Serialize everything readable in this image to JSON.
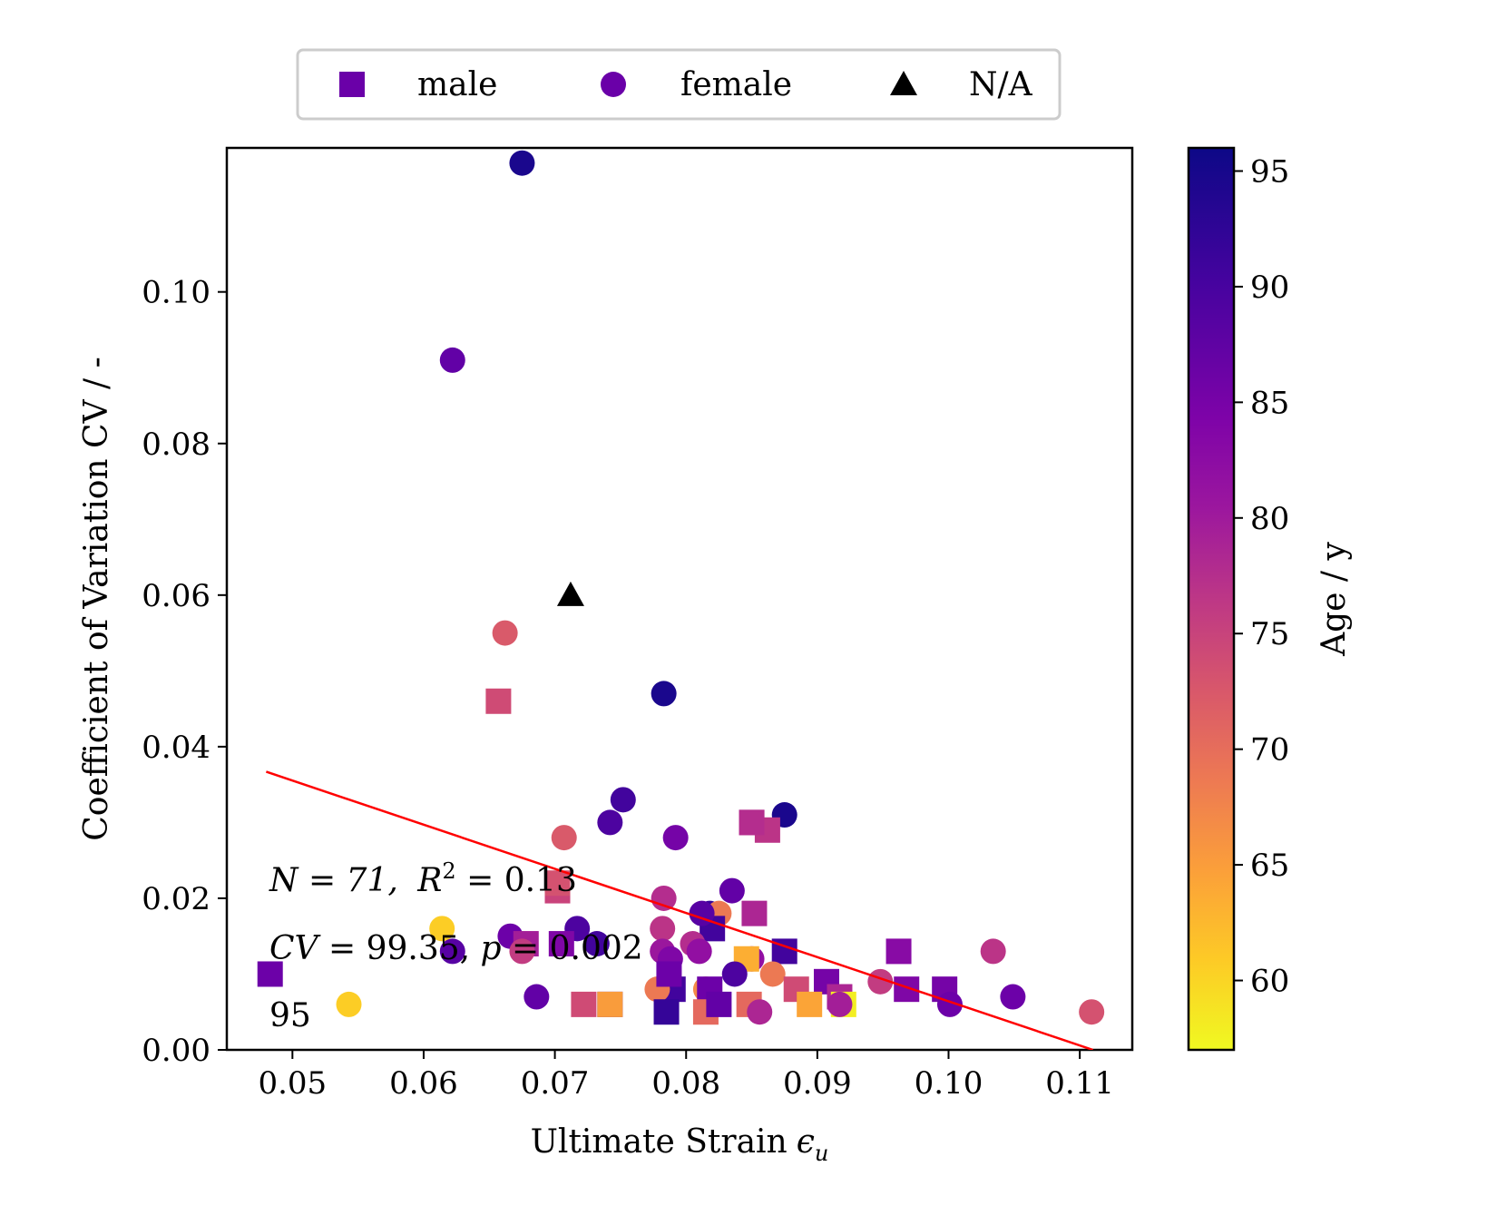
{
  "chart_data": {
    "type": "scatter",
    "xlabel": "Ultimate Strain",
    "xlabel_symbol": "ϵ",
    "xlabel_sub": "u",
    "ylabel": "Coefficient of Variation CV / -",
    "xlim": [
      0.045,
      0.114
    ],
    "ylim": [
      0.0,
      0.119
    ],
    "x_ticks": [
      0.05,
      0.06,
      0.07,
      0.08,
      0.09,
      0.1,
      0.11
    ],
    "x_tick_labels": [
      "0.05",
      "0.06",
      "0.07",
      "0.08",
      "0.09",
      "0.10",
      "0.11"
    ],
    "y_ticks": [
      0.0,
      0.02,
      0.04,
      0.06,
      0.08,
      0.1
    ],
    "y_tick_labels": [
      "0.00",
      "0.02",
      "0.04",
      "0.06",
      "0.08",
      "0.10"
    ],
    "grid": false,
    "legend": {
      "placement": "top-center, outside",
      "entries": [
        {
          "label": "male",
          "marker": "square",
          "color": "#6a00a8"
        },
        {
          "label": "female",
          "marker": "circle",
          "color": "#6a00a8"
        },
        {
          "label": "N/A",
          "marker": "triangle",
          "color": "#000000"
        }
      ]
    },
    "colorbar": {
      "label": "Age / y",
      "colormap": "plasma",
      "range": [
        57,
        96
      ],
      "ticks": [
        60,
        65,
        70,
        75,
        80,
        85,
        90,
        95
      ],
      "tick_labels": [
        "60",
        "65",
        "70",
        "75",
        "80",
        "85",
        "90",
        "95"
      ]
    },
    "fit_line": {
      "color": "#ff0000",
      "x": [
        0.048,
        0.111
      ],
      "y": [
        0.0367,
        0.0
      ]
    },
    "annotations": {
      "line1_n": "N = 71,",
      "line1_r2": "R",
      "line1_r2_sup": "2",
      "line1_r2_val": " = 0.13",
      "line2_cv": "CV",
      "line2_cv_val": " = 99.35, ",
      "line2_p": "p",
      "line2_p_val": " = 0.002",
      "line3": "95"
    },
    "points": [
      {
        "x": 0.0675,
        "y": 0.117,
        "age": 95,
        "sex": "female"
      },
      {
        "x": 0.0622,
        "y": 0.091,
        "age": 89,
        "sex": "female"
      },
      {
        "x": 0.0712,
        "y": 0.06,
        "age": null,
        "sex": "N/A"
      },
      {
        "x": 0.0662,
        "y": 0.055,
        "age": 74,
        "sex": "female"
      },
      {
        "x": 0.0657,
        "y": 0.046,
        "age": 76,
        "sex": "male"
      },
      {
        "x": 0.0783,
        "y": 0.047,
        "age": 95,
        "sex": "female"
      },
      {
        "x": 0.0752,
        "y": 0.033,
        "age": 92,
        "sex": "female"
      },
      {
        "x": 0.0742,
        "y": 0.03,
        "age": 91,
        "sex": "female"
      },
      {
        "x": 0.0792,
        "y": 0.028,
        "age": 87,
        "sex": "female"
      },
      {
        "x": 0.0875,
        "y": 0.031,
        "age": 95,
        "sex": "female"
      },
      {
        "x": 0.085,
        "y": 0.03,
        "age": 80,
        "sex": "male"
      },
      {
        "x": 0.0862,
        "y": 0.029,
        "age": 79,
        "sex": "male"
      },
      {
        "x": 0.0707,
        "y": 0.028,
        "age": 74,
        "sex": "female"
      },
      {
        "x": 0.0702,
        "y": 0.021,
        "age": 77,
        "sex": "male"
      },
      {
        "x": 0.0783,
        "y": 0.02,
        "age": 80,
        "sex": "female"
      },
      {
        "x": 0.0835,
        "y": 0.021,
        "age": 89,
        "sex": "female"
      },
      {
        "x": 0.0818,
        "y": 0.018,
        "age": 93,
        "sex": "female"
      },
      {
        "x": 0.0825,
        "y": 0.018,
        "age": 70,
        "sex": "female"
      },
      {
        "x": 0.0852,
        "y": 0.018,
        "age": 81,
        "sex": "male"
      },
      {
        "x": 0.0782,
        "y": 0.016,
        "age": 79,
        "sex": "female"
      },
      {
        "x": 0.082,
        "y": 0.016,
        "age": 92,
        "sex": "male"
      },
      {
        "x": 0.0614,
        "y": 0.016,
        "age": 61,
        "sex": "female"
      },
      {
        "x": 0.0666,
        "y": 0.015,
        "age": 88,
        "sex": "female"
      },
      {
        "x": 0.0717,
        "y": 0.016,
        "age": 91,
        "sex": "female"
      },
      {
        "x": 0.0732,
        "y": 0.014,
        "age": 92,
        "sex": "female"
      },
      {
        "x": 0.0678,
        "y": 0.014,
        "age": 82,
        "sex": "male"
      },
      {
        "x": 0.0705,
        "y": 0.014,
        "age": 86,
        "sex": "male"
      },
      {
        "x": 0.0622,
        "y": 0.013,
        "age": 90,
        "sex": "female"
      },
      {
        "x": 0.0782,
        "y": 0.013,
        "age": 83,
        "sex": "female"
      },
      {
        "x": 0.0805,
        "y": 0.014,
        "age": 80,
        "sex": "female"
      },
      {
        "x": 0.081,
        "y": 0.013,
        "age": 84,
        "sex": "female"
      },
      {
        "x": 0.0788,
        "y": 0.012,
        "age": 86,
        "sex": "female"
      },
      {
        "x": 0.085,
        "y": 0.012,
        "age": 84,
        "sex": "female"
      },
      {
        "x": 0.0846,
        "y": 0.012,
        "age": 64,
        "sex": "male"
      },
      {
        "x": 0.0875,
        "y": 0.013,
        "age": 92,
        "sex": "male"
      },
      {
        "x": 0.0962,
        "y": 0.013,
        "age": 85,
        "sex": "male"
      },
      {
        "x": 0.1034,
        "y": 0.013,
        "age": 79,
        "sex": "female"
      },
      {
        "x": 0.0483,
        "y": 0.01,
        "age": 88,
        "sex": "male"
      },
      {
        "x": 0.0543,
        "y": 0.006,
        "age": 61,
        "sex": "female"
      },
      {
        "x": 0.0686,
        "y": 0.007,
        "age": 89,
        "sex": "female"
      },
      {
        "x": 0.0837,
        "y": 0.01,
        "age": 91,
        "sex": "female"
      },
      {
        "x": 0.079,
        "y": 0.008,
        "age": 92,
        "sex": "male"
      },
      {
        "x": 0.0815,
        "y": 0.008,
        "age": 68,
        "sex": "female"
      },
      {
        "x": 0.0778,
        "y": 0.008,
        "age": 70,
        "sex": "female"
      },
      {
        "x": 0.0818,
        "y": 0.008,
        "age": 88,
        "sex": "male"
      },
      {
        "x": 0.0866,
        "y": 0.01,
        "age": 70,
        "sex": "female"
      },
      {
        "x": 0.0884,
        "y": 0.008,
        "age": 76,
        "sex": "male"
      },
      {
        "x": 0.0907,
        "y": 0.009,
        "age": 87,
        "sex": "male"
      },
      {
        "x": 0.0917,
        "y": 0.007,
        "age": 81,
        "sex": "male"
      },
      {
        "x": 0.0948,
        "y": 0.009,
        "age": 78,
        "sex": "female"
      },
      {
        "x": 0.0968,
        "y": 0.008,
        "age": 86,
        "sex": "male"
      },
      {
        "x": 0.0997,
        "y": 0.008,
        "age": 87,
        "sex": "male"
      },
      {
        "x": 0.1001,
        "y": 0.006,
        "age": 88,
        "sex": "female"
      },
      {
        "x": 0.1049,
        "y": 0.007,
        "age": 88,
        "sex": "female"
      },
      {
        "x": 0.1109,
        "y": 0.005,
        "age": 75,
        "sex": "female"
      },
      {
        "x": 0.0742,
        "y": 0.006,
        "age": 90,
        "sex": "male"
      },
      {
        "x": 0.0722,
        "y": 0.006,
        "age": 76,
        "sex": "male"
      },
      {
        "x": 0.0742,
        "y": 0.006,
        "age": 66,
        "sex": "male"
      },
      {
        "x": 0.0785,
        "y": 0.005,
        "age": 93,
        "sex": "male"
      },
      {
        "x": 0.0815,
        "y": 0.005,
        "age": 72,
        "sex": "male"
      },
      {
        "x": 0.0825,
        "y": 0.006,
        "age": 89,
        "sex": "male"
      },
      {
        "x": 0.0848,
        "y": 0.006,
        "age": 72,
        "sex": "male"
      },
      {
        "x": 0.0856,
        "y": 0.005,
        "age": 81,
        "sex": "female"
      },
      {
        "x": 0.0894,
        "y": 0.006,
        "age": 65,
        "sex": "male"
      },
      {
        "x": 0.092,
        "y": 0.006,
        "age": 58,
        "sex": "male"
      },
      {
        "x": 0.0917,
        "y": 0.006,
        "age": 82,
        "sex": "female"
      },
      {
        "x": 0.0675,
        "y": 0.013,
        "age": 78,
        "sex": "female"
      },
      {
        "x": 0.0812,
        "y": 0.018,
        "age": 90,
        "sex": "female"
      },
      {
        "x": 0.0702,
        "y": 0.022,
        "age": 75,
        "sex": "male"
      },
      {
        "x": 0.0787,
        "y": 0.01,
        "age": 88,
        "sex": "male"
      },
      {
        "x": 0.085,
        "y": 0.03,
        "age": 80,
        "sex": "male"
      }
    ]
  }
}
